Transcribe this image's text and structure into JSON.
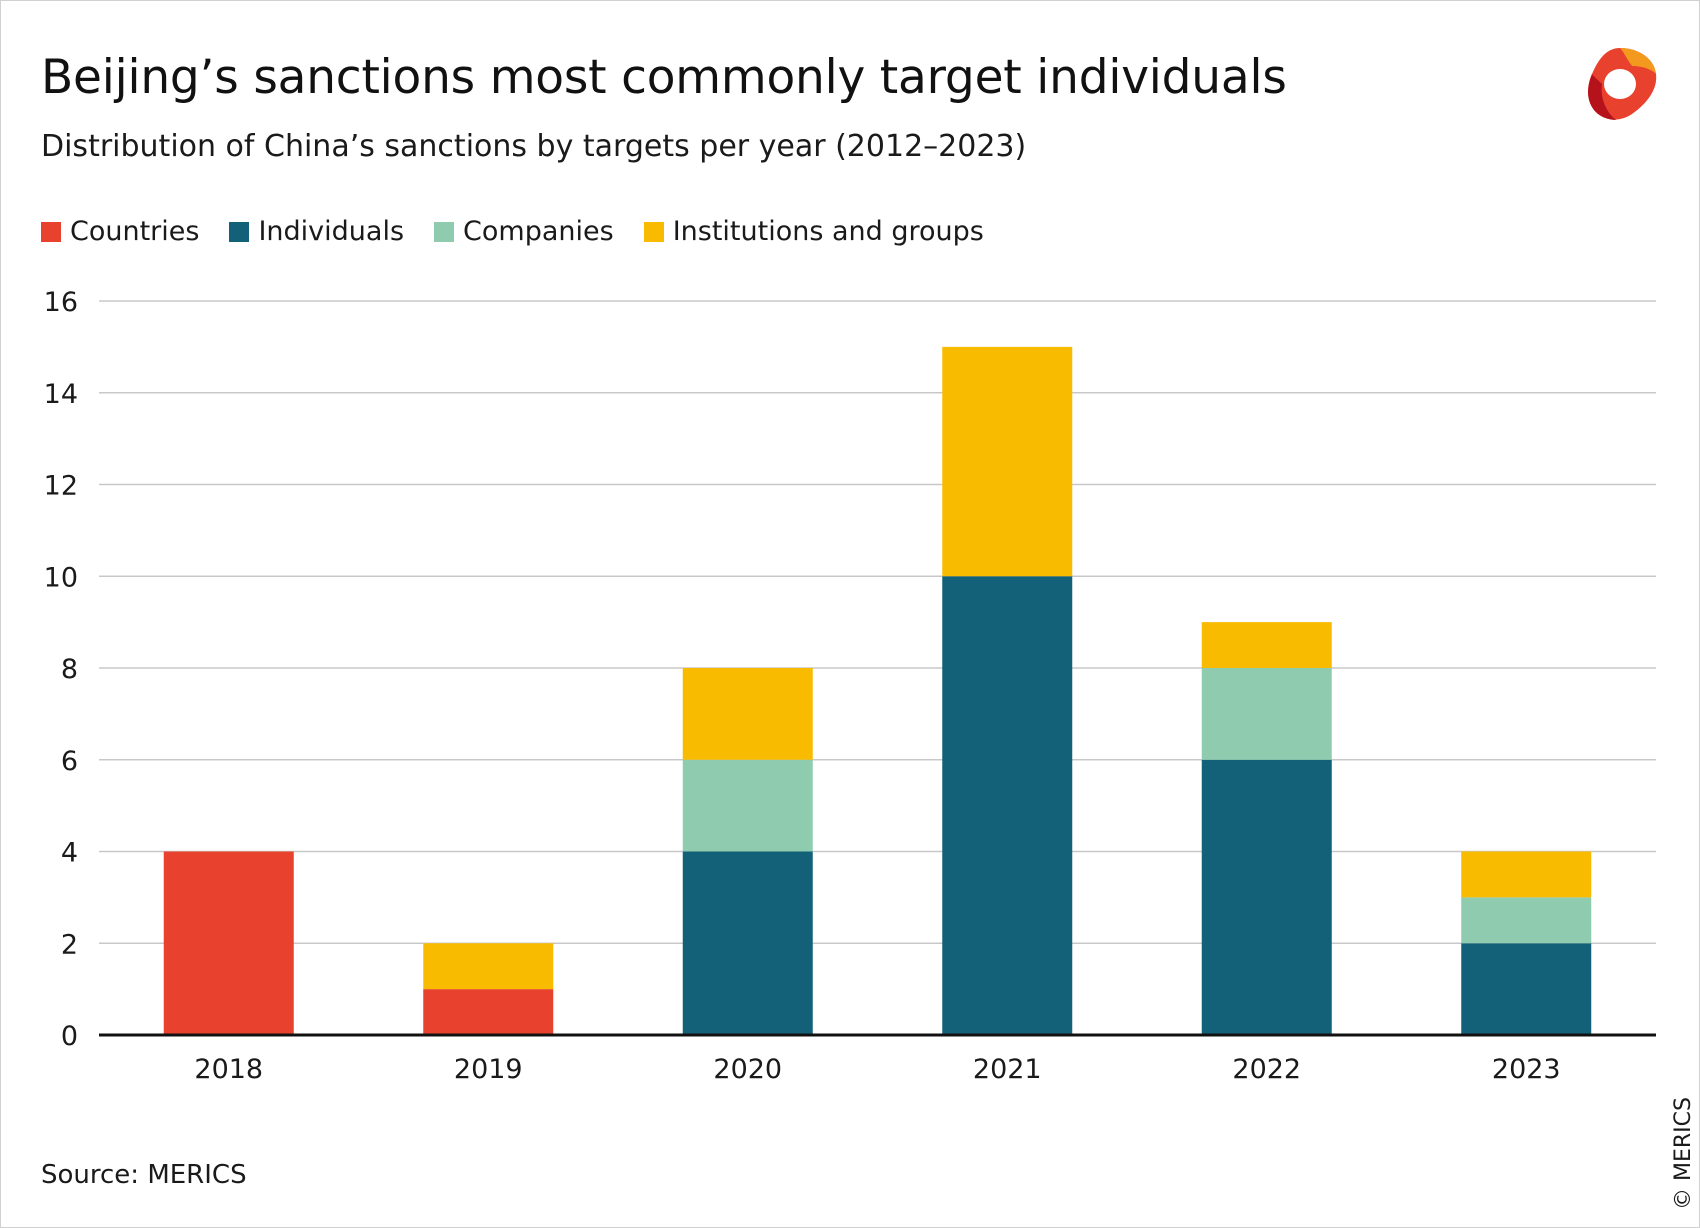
{
  "title": "Beijing’s sanctions most commonly target individuals",
  "subtitle": "Distribution of China’s sanctions by targets per year (2012–2023)",
  "source": "Source: MERICS",
  "copyright": "© MERICS",
  "logo_icon": "merics-logo",
  "colors": {
    "countries": "#e8412d",
    "individuals": "#126178",
    "companies": "#8fcbae",
    "institutions": "#f8bb00",
    "grid": "#c8c8c8",
    "axis": "#111111"
  },
  "chart_data": {
    "type": "bar",
    "stacked": true,
    "categories": [
      "2018",
      "2019",
      "2020",
      "2021",
      "2022",
      "2023"
    ],
    "series": [
      {
        "name": "Countries",
        "color": "#e8412d",
        "values": [
          4,
          1,
          0,
          0,
          0,
          0
        ]
      },
      {
        "name": "Individuals",
        "color": "#126178",
        "values": [
          0,
          0,
          4,
          10,
          6,
          2
        ]
      },
      {
        "name": "Companies",
        "color": "#8fcbae",
        "values": [
          0,
          0,
          2,
          0,
          2,
          1
        ]
      },
      {
        "name": "Institutions and groups",
        "color": "#f8bb00",
        "values": [
          0,
          1,
          2,
          5,
          1,
          1
        ]
      }
    ],
    "ylim": [
      0,
      16
    ],
    "yticks": [
      0,
      2,
      4,
      6,
      8,
      10,
      12,
      14,
      16
    ],
    "grid": true,
    "legend": "top-left",
    "xlabel": "",
    "ylabel": ""
  }
}
